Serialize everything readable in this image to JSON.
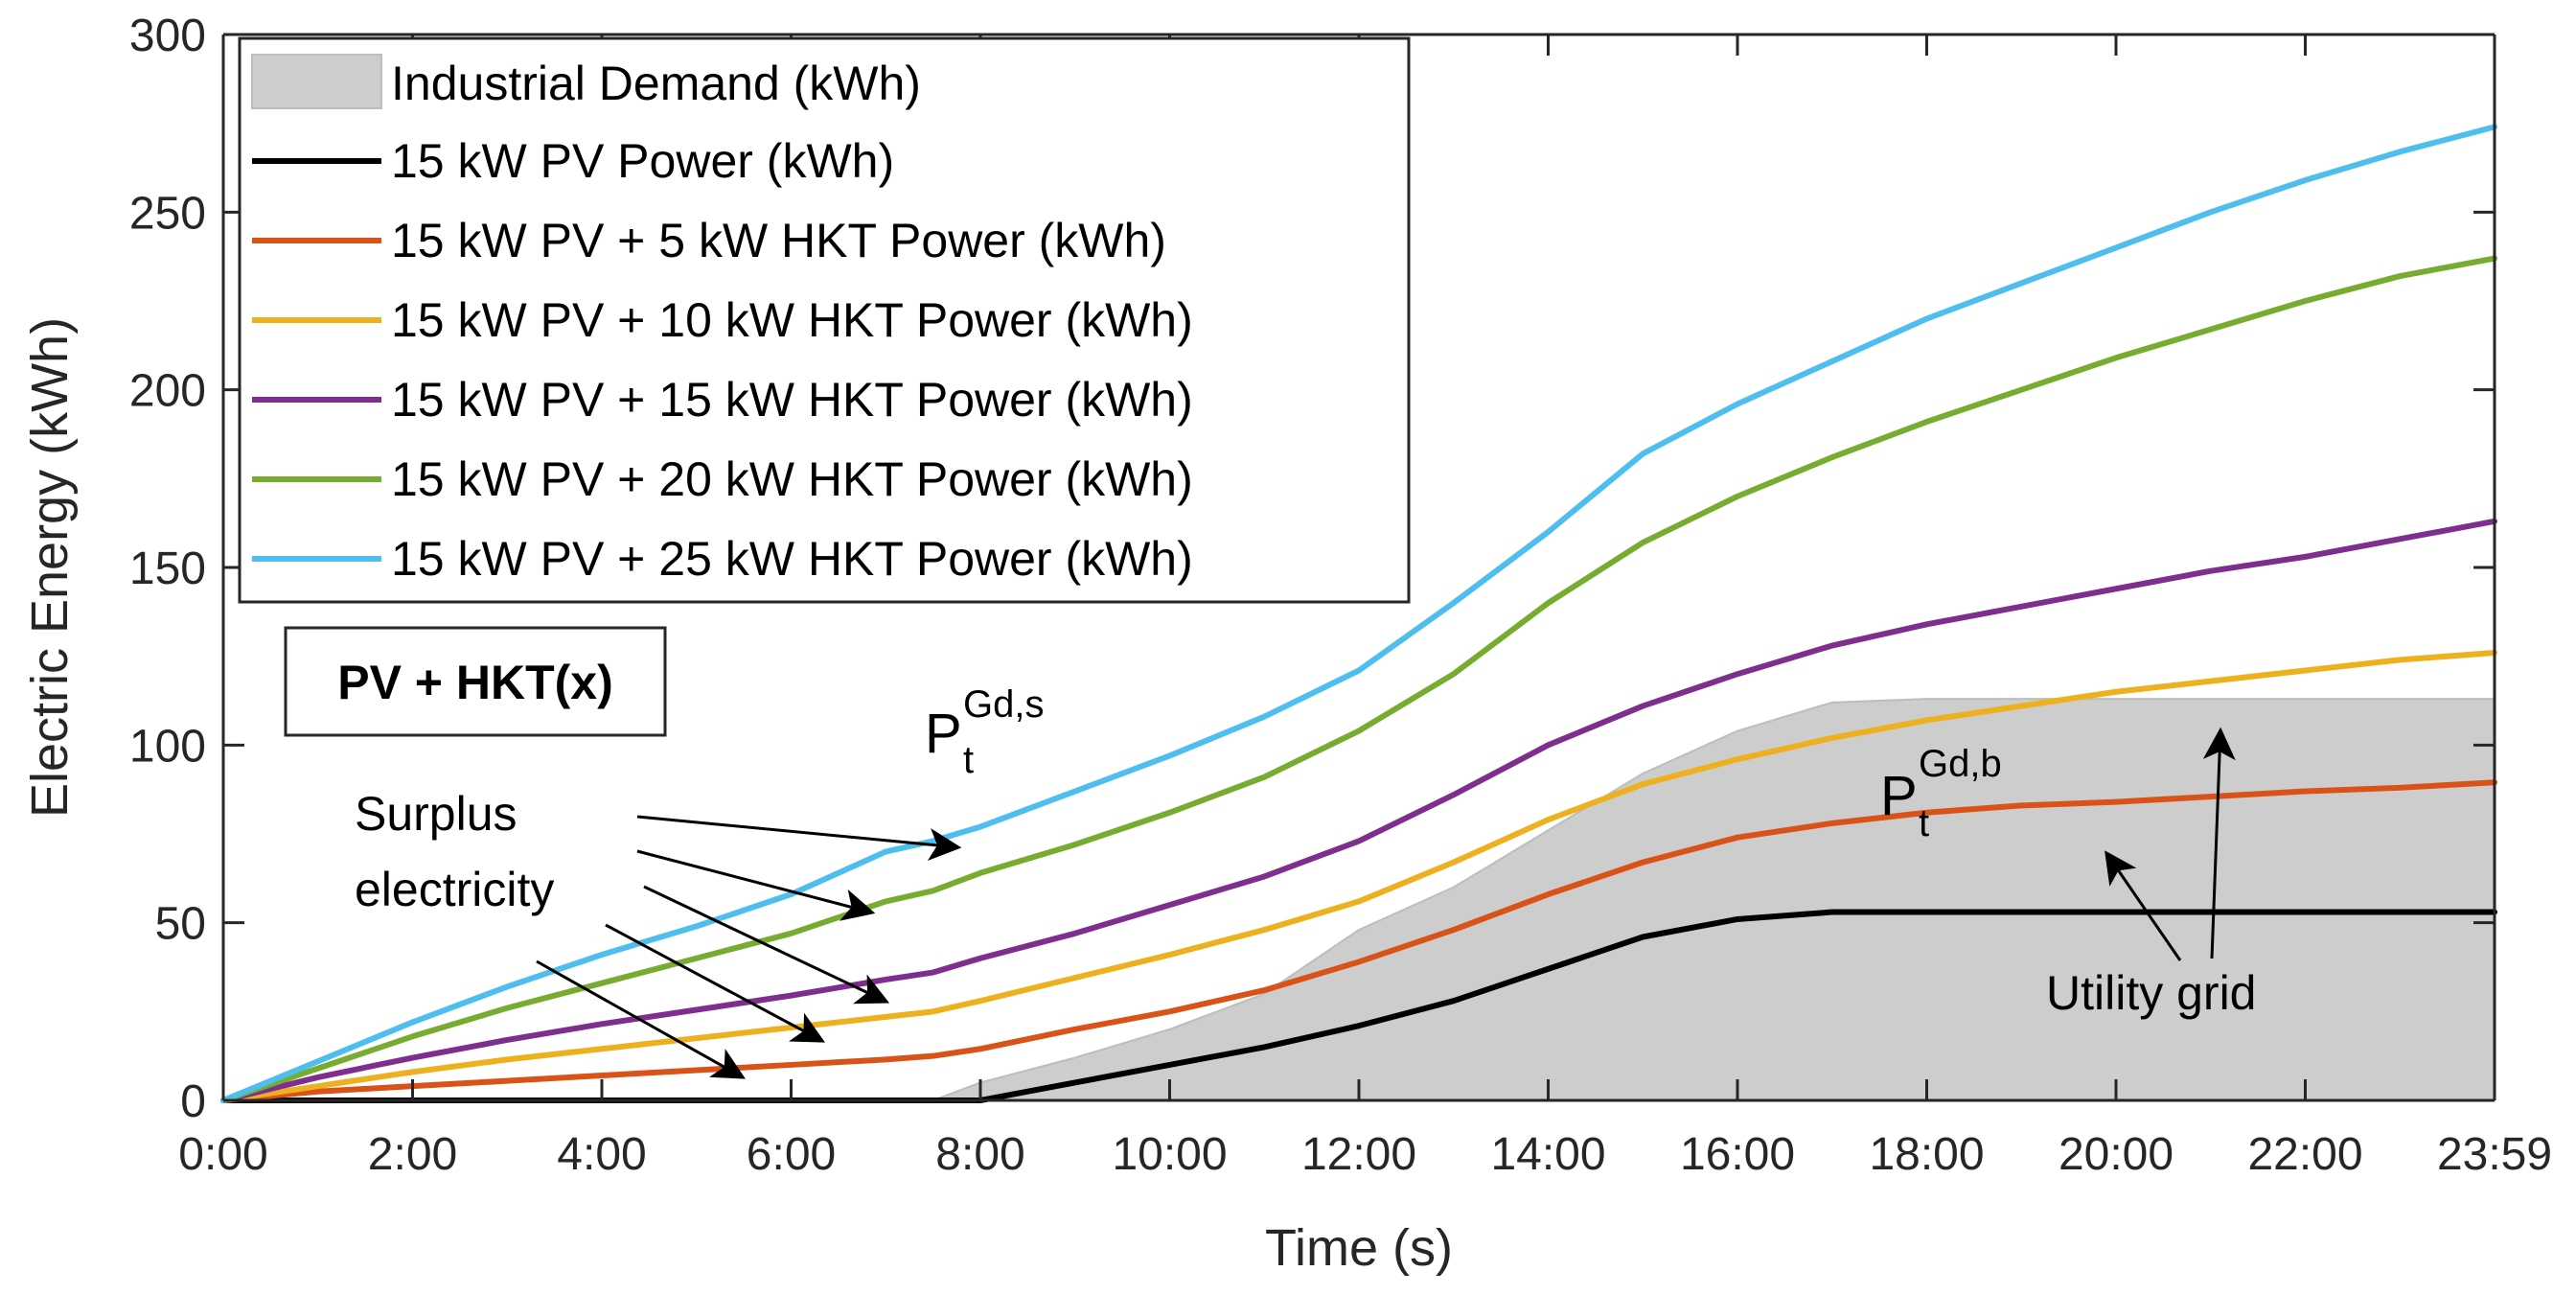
{
  "chart_data": {
    "type": "line",
    "title": "",
    "xlabel": "Time (s)",
    "ylabel": "Electric Energy (kWh)",
    "xlim": [
      0,
      24
    ],
    "ylim": [
      0,
      300
    ],
    "x_tick_values": [
      0,
      2,
      4,
      6,
      8,
      10,
      12,
      14,
      16,
      18,
      20,
      22,
      24
    ],
    "x_tick_labels": [
      "0:00",
      "2:00",
      "4:00",
      "6:00",
      "8:00",
      "10:00",
      "12:00",
      "14:00",
      "16:00",
      "18:00",
      "20:00",
      "22:00",
      "23:59"
    ],
    "y_tick_values": [
      0,
      50,
      100,
      150,
      200,
      250,
      300
    ],
    "y_tick_labels": [
      "0",
      "50",
      "100",
      "150",
      "200",
      "250",
      "300"
    ],
    "legend_position": "top-left",
    "x": [
      0,
      1,
      2,
      3,
      4,
      5,
      6,
      7,
      7.5,
      8,
      9,
      10,
      11,
      12,
      13,
      14,
      15,
      16,
      17,
      18,
      19,
      20,
      21,
      22,
      23,
      24
    ],
    "demand": {
      "name": "Industrial Demand (kWh)",
      "color": "#c8c8c8",
      "values": [
        0,
        0,
        0,
        0,
        0,
        0,
        0,
        0,
        0,
        5,
        12,
        20,
        30,
        48,
        60,
        76,
        92,
        104,
        112,
        113,
        113,
        113,
        113,
        113,
        113,
        113
      ]
    },
    "series": [
      {
        "name": "15 kW PV Power (kWh)",
        "color": "#000000",
        "values": [
          0,
          0,
          0,
          0,
          0,
          0,
          0,
          0,
          0,
          0,
          5,
          10,
          15,
          21,
          28,
          37,
          46,
          51,
          53,
          53,
          53,
          53,
          53,
          53,
          53,
          53
        ]
      },
      {
        "name": "15 kW PV + 5 kW HKT Power (kWh)",
        "color": "#d95319",
        "values": [
          0,
          2.5,
          4,
          5.5,
          7,
          8.5,
          10,
          11.5,
          12.5,
          14.5,
          20,
          25,
          31,
          39,
          48,
          58,
          67,
          74,
          78,
          81,
          83,
          84,
          85.5,
          87,
          88,
          89.5
        ]
      },
      {
        "name": "15 kW PV + 10 kW HKT Power (kWh)",
        "color": "#edb120",
        "values": [
          0,
          4,
          8,
          11.5,
          14.5,
          17.5,
          20.5,
          23.5,
          25,
          28,
          34.5,
          41,
          48,
          56,
          67,
          79,
          89,
          96,
          102,
          107,
          111,
          115,
          118,
          121,
          124,
          126
        ]
      },
      {
        "name": "15 kW PV + 15 kW HKT Power (kWh)",
        "color": "#7e2f8e",
        "values": [
          0,
          6.5,
          12,
          17,
          21.5,
          25.5,
          29.5,
          34,
          36,
          40,
          47,
          55,
          63,
          73,
          86,
          100,
          111,
          120,
          128,
          134,
          139,
          144,
          149,
          153,
          158,
          163
        ]
      },
      {
        "name": "15 kW PV + 20 kW HKT Power (kWh)",
        "color": "#77ac30",
        "values": [
          0,
          9,
          18,
          26,
          33,
          40,
          47,
          56,
          59,
          64,
          72,
          81,
          91,
          104,
          120,
          140,
          157,
          170,
          181,
          191,
          200,
          209,
          217,
          225,
          232,
          237
        ]
      },
      {
        "name": "15 kW PV + 25 kW HKT Power (kWh)",
        "color": "#4dbeee",
        "values": [
          0,
          11,
          22,
          32,
          41,
          49,
          58,
          70,
          73,
          77,
          87,
          97,
          108,
          121,
          140,
          160,
          182,
          196,
          208,
          220,
          230,
          240,
          250,
          259,
          267,
          274
        ]
      }
    ],
    "annotations": {
      "box_label": "PV + HKT(x)",
      "surplus_line1": "Surplus",
      "surplus_line2": "electricity",
      "utility_grid": "Utility grid",
      "sell_symbol": "P",
      "sell_superscript": "Gd,s",
      "sell_subscript": "t",
      "buy_symbol": "P",
      "buy_superscript": "Gd,b",
      "buy_subscript": "t"
    }
  }
}
